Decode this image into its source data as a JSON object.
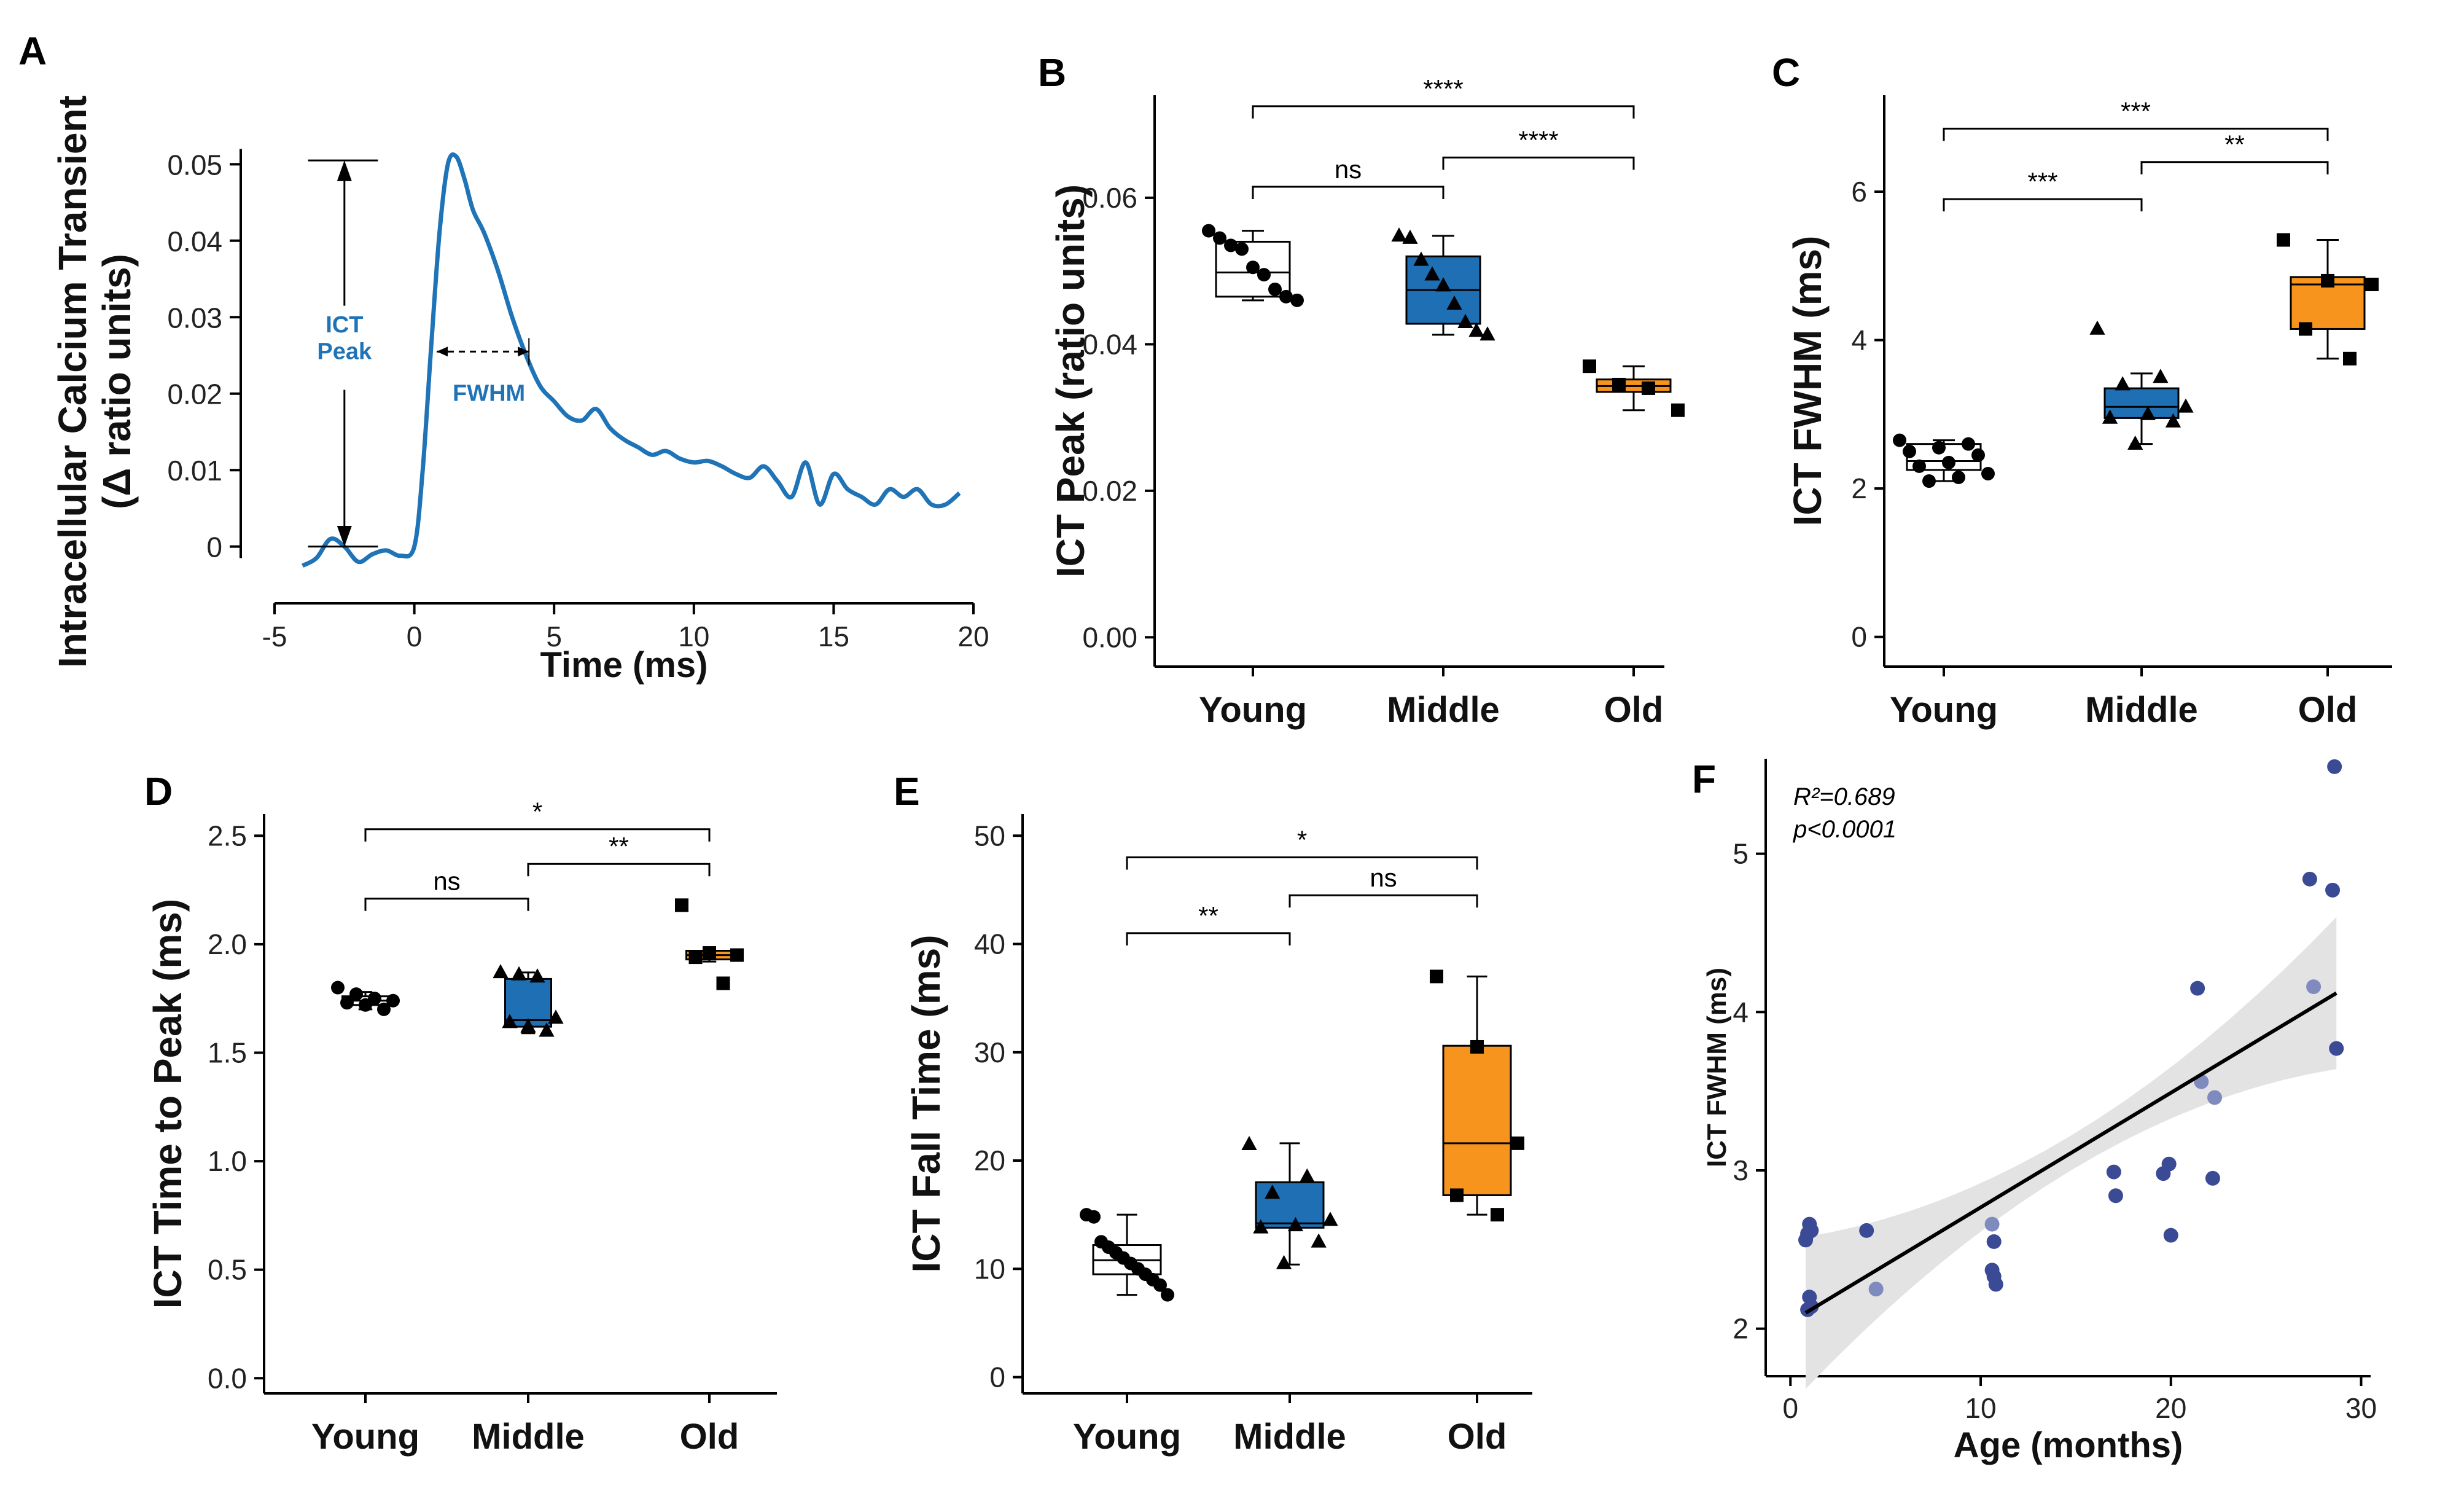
{
  "figure": {
    "colors": {
      "young": "#ffffff",
      "middle": "#1f6fb4",
      "old": "#f7941d",
      "trace": "#1f73b7",
      "scatter": "#3a4a94",
      "scatter_light": "#7f8bbf",
      "band": "#e3e3e3"
    }
  },
  "chart_data": [
    {
      "panel": "A",
      "type": "line",
      "ylabel_line1": "Intracellular Calcium Transient",
      "ylabel_line2": "(Δ ratio units)",
      "xlabel": "Time (ms)",
      "xlim": [
        -5,
        20
      ],
      "ylim": [
        -0.003,
        0.053
      ],
      "xticks": [
        -5,
        0,
        5,
        10,
        15,
        20
      ],
      "yticks": [
        0,
        0.01,
        0.02,
        0.03,
        0.04,
        0.05
      ],
      "ytick_labels": [
        "0",
        "0.01",
        "0.02",
        "0.03",
        "0.04",
        "0.05"
      ],
      "annotations": {
        "peak_line1": "ICT",
        "peak_line2": "Peak",
        "fwhm": "FWHM"
      },
      "x": [
        -4,
        -3.5,
        -3,
        -2.5,
        -2,
        -1.5,
        -1,
        -0.5,
        0,
        0.3,
        0.6,
        0.9,
        1.2,
        1.5,
        1.8,
        2.1,
        2.5,
        3,
        3.5,
        4,
        4.5,
        5,
        5.5,
        6,
        6.5,
        7,
        7.5,
        8,
        8.5,
        9,
        9.5,
        10,
        10.5,
        11,
        11.5,
        12,
        12.5,
        13,
        13.5,
        14,
        14.5,
        15,
        15.5,
        16,
        16.5,
        17,
        17.5,
        18,
        18.5,
        19,
        19.5
      ],
      "y": [
        -0.0025,
        -0.0015,
        0.001,
        0,
        -0.002,
        -0.001,
        -0.0005,
        -0.0012,
        0,
        0.01,
        0.026,
        0.041,
        0.05,
        0.051,
        0.048,
        0.044,
        0.041,
        0.036,
        0.03,
        0.025,
        0.021,
        0.019,
        0.017,
        0.0165,
        0.018,
        0.0155,
        0.014,
        0.013,
        0.012,
        0.0125,
        0.0115,
        0.011,
        0.0112,
        0.0105,
        0.0095,
        0.009,
        0.0105,
        0.0085,
        0.0065,
        0.011,
        0.0055,
        0.0095,
        0.0075,
        0.0065,
        0.0055,
        0.0075,
        0.0065,
        0.0075,
        0.0055,
        0.0055,
        0.007
      ]
    },
    {
      "panel": "B",
      "type": "box",
      "ylabel": "ICT Peak (ratio units)",
      "ylim": [
        -0.004,
        0.074
      ],
      "yticks": [
        0,
        0.02,
        0.04,
        0.06
      ],
      "ytick_labels": [
        "0.00",
        "0.02",
        "0.04",
        "0.06"
      ],
      "categories": [
        "Young",
        "Middle",
        "Old"
      ],
      "markers": [
        "circle",
        "triangle",
        "square"
      ],
      "boxes": [
        {
          "min": 0.046,
          "q1": 0.0465,
          "median": 0.0498,
          "q3": 0.054,
          "max": 0.0555,
          "points": [
            0.0555,
            0.0545,
            0.0535,
            0.053,
            0.0505,
            0.0495,
            0.0475,
            0.0465,
            0.046
          ]
        },
        {
          "min": 0.0413,
          "q1": 0.0428,
          "median": 0.0474,
          "q3": 0.052,
          "max": 0.0548,
          "points": [
            0.0548,
            0.0545,
            0.0515,
            0.0495,
            0.048,
            0.0455,
            0.043,
            0.0418,
            0.0413
          ]
        },
        {
          "min": 0.031,
          "q1": 0.0335,
          "median": 0.0343,
          "q3": 0.0352,
          "max": 0.037,
          "points": [
            0.037,
            0.0345,
            0.034,
            0.031
          ]
        }
      ],
      "comparisons": [
        {
          "from": 0,
          "to": 2,
          "label": "****",
          "y": 0.0725
        },
        {
          "from": 1,
          "to": 2,
          "label": "****",
          "y": 0.0655
        },
        {
          "from": 0,
          "to": 1,
          "label": "ns",
          "y": 0.0615
        }
      ]
    },
    {
      "panel": "C",
      "type": "box",
      "ylabel": "ICT FWHM (ms)",
      "ylim": [
        -0.4,
        7.3
      ],
      "yticks": [
        0,
        2,
        4,
        6
      ],
      "ytick_labels": [
        "0",
        "2",
        "4",
        "6"
      ],
      "categories": [
        "Young",
        "Middle",
        "Old"
      ],
      "markers": [
        "circle",
        "triangle",
        "square"
      ],
      "boxes": [
        {
          "min": 2.1,
          "q1": 2.25,
          "median": 2.37,
          "q3": 2.6,
          "max": 2.65,
          "points": [
            2.65,
            2.6,
            2.55,
            2.5,
            2.45,
            2.35,
            2.3,
            2.2,
            2.15,
            2.1
          ]
        },
        {
          "min": 2.6,
          "q1": 2.95,
          "median": 3.1,
          "q3": 3.35,
          "max": 3.55,
          "points": [
            4.15,
            3.5,
            3.4,
            3.1,
            3.0,
            2.95,
            2.9,
            2.6
          ]
        },
        {
          "min": 3.75,
          "q1": 4.15,
          "median": 4.75,
          "q3": 4.85,
          "max": 5.35,
          "points": [
            5.35,
            4.8,
            4.75,
            4.15,
            3.75
          ]
        }
      ],
      "comparisons": [
        {
          "from": 0,
          "to": 2,
          "label": "***",
          "y": 6.85
        },
        {
          "from": 1,
          "to": 2,
          "label": "**",
          "y": 6.4
        },
        {
          "from": 0,
          "to": 1,
          "label": "***",
          "y": 5.9
        }
      ]
    },
    {
      "panel": "D",
      "type": "box",
      "ylabel": "ICT Time to Peak (ms)",
      "ylim": [
        -0.07,
        2.6
      ],
      "yticks": [
        0,
        0.5,
        1,
        1.5,
        2,
        2.5
      ],
      "ytick_labels": [
        "0.0",
        "0.5",
        "1.0",
        "1.5",
        "2.0",
        "2.5"
      ],
      "categories": [
        "Young",
        "Middle",
        "Old"
      ],
      "markers": [
        "circle",
        "triangle",
        "square"
      ],
      "boxes": [
        {
          "min": 1.7,
          "q1": 1.72,
          "median": 1.74,
          "q3": 1.76,
          "max": 1.78,
          "points": [
            1.8,
            1.77,
            1.75,
            1.74,
            1.73,
            1.72,
            1.7
          ]
        },
        {
          "min": 1.59,
          "q1": 1.62,
          "median": 1.65,
          "q3": 1.84,
          "max": 1.87,
          "points": [
            1.87,
            1.86,
            1.85,
            1.66,
            1.64,
            1.62,
            1.6
          ]
        },
        {
          "min": 1.92,
          "q1": 1.93,
          "median": 1.95,
          "q3": 1.97,
          "max": 1.97,
          "points": [
            2.18,
            1.96,
            1.95,
            1.94,
            1.82
          ]
        }
      ],
      "comparisons": [
        {
          "from": 0,
          "to": 2,
          "label": "*",
          "y": 2.53
        },
        {
          "from": 1,
          "to": 2,
          "label": "**",
          "y": 2.37
        },
        {
          "from": 0,
          "to": 1,
          "label": "ns",
          "y": 2.21
        }
      ]
    },
    {
      "panel": "E",
      "type": "box",
      "ylabel": "ICT Fall Time (ms)",
      "ylim": [
        -1.5,
        52
      ],
      "yticks": [
        0,
        10,
        20,
        30,
        40,
        50
      ],
      "ytick_labels": [
        "0",
        "10",
        "20",
        "30",
        "40",
        "50"
      ],
      "categories": [
        "Young",
        "Middle",
        "Old"
      ],
      "markers": [
        "circle",
        "triangle",
        "square"
      ],
      "boxes": [
        {
          "min": 7.6,
          "q1": 9.5,
          "median": 10.8,
          "q3": 12.2,
          "max": 15,
          "points": [
            15,
            14.8,
            12.5,
            12,
            11.5,
            11,
            10.5,
            10,
            9.5,
            9,
            8.5,
            7.6
          ]
        },
        {
          "min": 10.4,
          "q1": 13.8,
          "median": 14.2,
          "q3": 18,
          "max": 21.6,
          "points": [
            21.5,
            18.5,
            17,
            14.5,
            14,
            13.8,
            12.5,
            10.5
          ]
        },
        {
          "min": 15,
          "q1": 16.8,
          "median": 21.6,
          "q3": 30.6,
          "max": 37,
          "points": [
            37,
            30.5,
            21.6,
            16.8,
            15
          ]
        }
      ],
      "comparisons": [
        {
          "from": 0,
          "to": 2,
          "label": "*",
          "y": 48
        },
        {
          "from": 1,
          "to": 2,
          "label": "ns",
          "y": 44.5
        },
        {
          "from": 0,
          "to": 1,
          "label": "**",
          "y": 41
        }
      ]
    },
    {
      "panel": "F",
      "type": "scatter",
      "ylabel": "ICT FWHM (ms)",
      "xlabel": "Age (months)",
      "xlim": [
        -1.3,
        30.5
      ],
      "ylim": [
        1.7,
        5.6
      ],
      "xticks": [
        0,
        10,
        20,
        30
      ],
      "yticks": [
        2,
        3,
        4,
        5
      ],
      "stats_r2_label": "R²=0.689",
      "stats_p_label": "p<0.0001",
      "fit": {
        "x0": 0.8,
        "y0": 2.1,
        "x1": 28.7,
        "y1": 4.12
      },
      "points": [
        {
          "x": 0.8,
          "y": 2.56
        },
        {
          "x": 0.9,
          "y": 2.6
        },
        {
          "x": 1.0,
          "y": 2.66
        },
        {
          "x": 1.1,
          "y": 2.62
        },
        {
          "x": 0.9,
          "y": 2.12
        },
        {
          "x": 1.0,
          "y": 2.2
        },
        {
          "x": 1.1,
          "y": 2.14
        },
        {
          "x": 4.0,
          "y": 2.62
        },
        {
          "x": 4.5,
          "y": 2.25,
          "light": true
        },
        {
          "x": 10.6,
          "y": 2.66,
          "light": true
        },
        {
          "x": 10.7,
          "y": 2.55
        },
        {
          "x": 10.6,
          "y": 2.37
        },
        {
          "x": 10.7,
          "y": 2.33
        },
        {
          "x": 10.8,
          "y": 2.28
        },
        {
          "x": 17.0,
          "y": 2.99
        },
        {
          "x": 17.1,
          "y": 2.84
        },
        {
          "x": 19.6,
          "y": 2.98
        },
        {
          "x": 19.9,
          "y": 3.04
        },
        {
          "x": 20.0,
          "y": 2.59
        },
        {
          "x": 21.4,
          "y": 4.15
        },
        {
          "x": 21.6,
          "y": 3.56,
          "light": true
        },
        {
          "x": 22.3,
          "y": 3.46,
          "light": true
        },
        {
          "x": 22.2,
          "y": 2.95
        },
        {
          "x": 27.3,
          "y": 4.84
        },
        {
          "x": 27.5,
          "y": 4.16,
          "light": true
        },
        {
          "x": 28.5,
          "y": 4.77
        },
        {
          "x": 28.6,
          "y": 5.55
        },
        {
          "x": 28.7,
          "y": 3.77
        }
      ]
    }
  ]
}
